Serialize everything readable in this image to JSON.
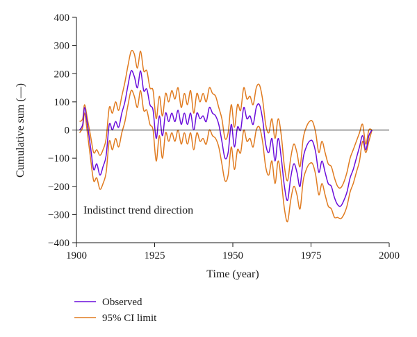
{
  "chart_data": {
    "type": "line",
    "title": "",
    "xlabel": "Time (year)",
    "ylabel": "Cumulative sum (—)",
    "xlim": [
      1900,
      2000
    ],
    "ylim": [
      -400,
      400
    ],
    "x_ticks": [
      "1900",
      "1925",
      "1950",
      "1975",
      "2000"
    ],
    "y_ticks": [
      "400",
      "300",
      "200",
      "100",
      "0",
      "−100",
      "−200",
      "−300",
      "−400"
    ],
    "grid": false,
    "zero_line": true,
    "legend_position": "bottom-left",
    "annotation": "Indistinct trend direction",
    "colors": {
      "observed": "#6a0ddb",
      "ci": "#e07b20",
      "annotation": "#2f7fae"
    },
    "series": [
      {
        "name": "Observed",
        "key": "observed",
        "points": [
          [
            1901,
            0
          ],
          [
            1902,
            20
          ],
          [
            1902.6,
            80
          ],
          [
            1903.5,
            20
          ],
          [
            1904.5,
            -60
          ],
          [
            1905.5,
            -140
          ],
          [
            1906.5,
            -120
          ],
          [
            1907.5,
            -160
          ],
          [
            1908.5,
            -130
          ],
          [
            1909.5,
            -90
          ],
          [
            1910.5,
            20
          ],
          [
            1911.5,
            0
          ],
          [
            1912.5,
            30
          ],
          [
            1913.5,
            10
          ],
          [
            1914.5,
            60
          ],
          [
            1915.5,
            100
          ],
          [
            1916.5,
            160
          ],
          [
            1917.5,
            210
          ],
          [
            1918.5,
            190
          ],
          [
            1919.5,
            150
          ],
          [
            1920.5,
            210
          ],
          [
            1921.5,
            140
          ],
          [
            1922.5,
            145
          ],
          [
            1923.5,
            90
          ],
          [
            1924.5,
            70
          ],
          [
            1925.5,
            -30
          ],
          [
            1926.5,
            50
          ],
          [
            1927.5,
            -20
          ],
          [
            1928.5,
            60
          ],
          [
            1929.5,
            30
          ],
          [
            1930.5,
            60
          ],
          [
            1931.5,
            30
          ],
          [
            1932.5,
            70
          ],
          [
            1933.5,
            20
          ],
          [
            1934.5,
            60
          ],
          [
            1935.5,
            20
          ],
          [
            1936.5,
            60
          ],
          [
            1937.5,
            0
          ],
          [
            1938.5,
            60
          ],
          [
            1939.5,
            40
          ],
          [
            1940.5,
            50
          ],
          [
            1941.5,
            30
          ],
          [
            1942.5,
            80
          ],
          [
            1943.5,
            60
          ],
          [
            1944.5,
            50
          ],
          [
            1945.5,
            20
          ],
          [
            1946.5,
            -40
          ],
          [
            1947.5,
            -100
          ],
          [
            1948.5,
            -80
          ],
          [
            1949.5,
            20
          ],
          [
            1950.5,
            -60
          ],
          [
            1951.5,
            10
          ],
          [
            1952.5,
            0
          ],
          [
            1953.5,
            80
          ],
          [
            1954.5,
            40
          ],
          [
            1955.5,
            50
          ],
          [
            1956.5,
            20
          ],
          [
            1957.5,
            80
          ],
          [
            1958.5,
            90
          ],
          [
            1959.5,
            40
          ],
          [
            1960.5,
            -50
          ],
          [
            1961.5,
            -80
          ],
          [
            1962.5,
            -30
          ],
          [
            1963.5,
            -110
          ],
          [
            1964.5,
            -30
          ],
          [
            1965.5,
            -100
          ],
          [
            1966.5,
            -200
          ],
          [
            1967.5,
            -250
          ],
          [
            1968.5,
            -170
          ],
          [
            1969.5,
            -120
          ],
          [
            1970.5,
            -150
          ],
          [
            1971.5,
            -200
          ],
          [
            1972.5,
            -100
          ],
          [
            1973.5,
            -60
          ],
          [
            1974.5,
            -40
          ],
          [
            1975.5,
            -40
          ],
          [
            1976.5,
            -80
          ],
          [
            1977.5,
            -150
          ],
          [
            1978.5,
            -110
          ],
          [
            1979.5,
            -150
          ],
          [
            1980.5,
            -190
          ],
          [
            1981.5,
            -200
          ],
          [
            1982.5,
            -240
          ],
          [
            1983.5,
            -265
          ],
          [
            1984.5,
            -270
          ],
          [
            1985.5,
            -250
          ],
          [
            1986.5,
            -220
          ],
          [
            1987.5,
            -170
          ],
          [
            1988.5,
            -140
          ],
          [
            1989.5,
            -100
          ],
          [
            1990.5,
            -60
          ],
          [
            1991.5,
            -20
          ],
          [
            1992.5,
            -70
          ],
          [
            1993.5,
            -20
          ],
          [
            1994.5,
            0
          ]
        ]
      },
      {
        "name": "95% CI limit",
        "key": "ci_upper",
        "points": [
          [
            1901,
            30
          ],
          [
            1902,
            40
          ],
          [
            1902.6,
            90
          ],
          [
            1903.5,
            40
          ],
          [
            1904.5,
            -20
          ],
          [
            1905.5,
            -80
          ],
          [
            1906.5,
            -70
          ],
          [
            1907.5,
            -90
          ],
          [
            1908.5,
            -70
          ],
          [
            1909.5,
            -30
          ],
          [
            1910.5,
            80
          ],
          [
            1911.5,
            60
          ],
          [
            1912.5,
            100
          ],
          [
            1913.5,
            70
          ],
          [
            1914.5,
            120
          ],
          [
            1915.5,
            170
          ],
          [
            1916.5,
            230
          ],
          [
            1917.5,
            280
          ],
          [
            1918.5,
            270
          ],
          [
            1919.5,
            220
          ],
          [
            1920.5,
            280
          ],
          [
            1921.5,
            210
          ],
          [
            1922.5,
            210
          ],
          [
            1923.5,
            150
          ],
          [
            1924.5,
            140
          ],
          [
            1925.5,
            40
          ],
          [
            1926.5,
            120
          ],
          [
            1927.5,
            50
          ],
          [
            1928.5,
            130
          ],
          [
            1929.5,
            100
          ],
          [
            1930.5,
            140
          ],
          [
            1931.5,
            110
          ],
          [
            1932.5,
            150
          ],
          [
            1933.5,
            80
          ],
          [
            1934.5,
            130
          ],
          [
            1935.5,
            90
          ],
          [
            1936.5,
            140
          ],
          [
            1937.5,
            60
          ],
          [
            1938.5,
            130
          ],
          [
            1939.5,
            100
          ],
          [
            1940.5,
            130
          ],
          [
            1941.5,
            100
          ],
          [
            1942.5,
            150
          ],
          [
            1943.5,
            130
          ],
          [
            1944.5,
            120
          ],
          [
            1945.5,
            80
          ],
          [
            1946.5,
            40
          ],
          [
            1947.5,
            -30
          ],
          [
            1948.5,
            -10
          ],
          [
            1949.5,
            90
          ],
          [
            1950.5,
            10
          ],
          [
            1951.5,
            90
          ],
          [
            1952.5,
            70
          ],
          [
            1953.5,
            150
          ],
          [
            1954.5,
            110
          ],
          [
            1955.5,
            120
          ],
          [
            1956.5,
            90
          ],
          [
            1957.5,
            150
          ],
          [
            1958.5,
            160
          ],
          [
            1959.5,
            110
          ],
          [
            1960.5,
            20
          ],
          [
            1961.5,
            -10
          ],
          [
            1962.5,
            40
          ],
          [
            1963.5,
            -30
          ],
          [
            1964.5,
            40
          ],
          [
            1965.5,
            -20
          ],
          [
            1966.5,
            -130
          ],
          [
            1967.5,
            -180
          ],
          [
            1968.5,
            -100
          ],
          [
            1969.5,
            -50
          ],
          [
            1970.5,
            -80
          ],
          [
            1971.5,
            -130
          ],
          [
            1972.5,
            -30
          ],
          [
            1973.5,
            10
          ],
          [
            1974.5,
            30
          ],
          [
            1975.5,
            30
          ],
          [
            1976.5,
            -10
          ],
          [
            1977.5,
            -80
          ],
          [
            1978.5,
            -40
          ],
          [
            1979.5,
            -80
          ],
          [
            1980.5,
            -120
          ],
          [
            1981.5,
            -130
          ],
          [
            1982.5,
            -170
          ],
          [
            1983.5,
            -200
          ],
          [
            1984.5,
            -205
          ],
          [
            1985.5,
            -185
          ],
          [
            1986.5,
            -150
          ],
          [
            1987.5,
            -100
          ],
          [
            1988.5,
            -70
          ],
          [
            1989.5,
            -40
          ],
          [
            1990.5,
            -10
          ],
          [
            1991.5,
            20
          ],
          [
            1992.5,
            -50
          ],
          [
            1993.5,
            0
          ],
          [
            1994.5,
            0
          ]
        ]
      },
      {
        "name": "95% CI limit",
        "key": "ci_lower",
        "points": [
          [
            1901,
            -10
          ],
          [
            1902,
            10
          ],
          [
            1902.6,
            60
          ],
          [
            1903.5,
            -10
          ],
          [
            1904.5,
            -100
          ],
          [
            1905.5,
            -180
          ],
          [
            1906.5,
            -170
          ],
          [
            1907.5,
            -210
          ],
          [
            1908.5,
            -190
          ],
          [
            1909.5,
            -150
          ],
          [
            1910.5,
            -40
          ],
          [
            1911.5,
            -70
          ],
          [
            1912.5,
            -30
          ],
          [
            1913.5,
            -60
          ],
          [
            1914.5,
            -10
          ],
          [
            1915.5,
            30
          ],
          [
            1916.5,
            90
          ],
          [
            1917.5,
            140
          ],
          [
            1918.5,
            120
          ],
          [
            1919.5,
            80
          ],
          [
            1920.5,
            140
          ],
          [
            1921.5,
            70
          ],
          [
            1922.5,
            70
          ],
          [
            1923.5,
            20
          ],
          [
            1924.5,
            0
          ],
          [
            1925.5,
            -110
          ],
          [
            1926.5,
            -20
          ],
          [
            1927.5,
            -100
          ],
          [
            1928.5,
            -10
          ],
          [
            1929.5,
            -40
          ],
          [
            1930.5,
            -10
          ],
          [
            1931.5,
            -40
          ],
          [
            1932.5,
            0
          ],
          [
            1933.5,
            -50
          ],
          [
            1934.5,
            -10
          ],
          [
            1935.5,
            -50
          ],
          [
            1936.5,
            -10
          ],
          [
            1937.5,
            -70
          ],
          [
            1938.5,
            -10
          ],
          [
            1939.5,
            -40
          ],
          [
            1940.5,
            -30
          ],
          [
            1941.5,
            -50
          ],
          [
            1942.5,
            0
          ],
          [
            1943.5,
            -20
          ],
          [
            1944.5,
            -30
          ],
          [
            1945.5,
            -60
          ],
          [
            1946.5,
            -120
          ],
          [
            1947.5,
            -180
          ],
          [
            1948.5,
            -160
          ],
          [
            1949.5,
            -60
          ],
          [
            1950.5,
            -140
          ],
          [
            1951.5,
            -70
          ],
          [
            1952.5,
            -80
          ],
          [
            1953.5,
            0
          ],
          [
            1954.5,
            -40
          ],
          [
            1955.5,
            -30
          ],
          [
            1956.5,
            -60
          ],
          [
            1957.5,
            0
          ],
          [
            1958.5,
            10
          ],
          [
            1959.5,
            -40
          ],
          [
            1960.5,
            -130
          ],
          [
            1961.5,
            -160
          ],
          [
            1962.5,
            -110
          ],
          [
            1963.5,
            -190
          ],
          [
            1964.5,
            -110
          ],
          [
            1965.5,
            -180
          ],
          [
            1966.5,
            -280
          ],
          [
            1967.5,
            -325
          ],
          [
            1968.5,
            -250
          ],
          [
            1969.5,
            -200
          ],
          [
            1970.5,
            -230
          ],
          [
            1971.5,
            -280
          ],
          [
            1972.5,
            -180
          ],
          [
            1973.5,
            -140
          ],
          [
            1974.5,
            -120
          ],
          [
            1975.5,
            -120
          ],
          [
            1976.5,
            -160
          ],
          [
            1977.5,
            -230
          ],
          [
            1978.5,
            -190
          ],
          [
            1979.5,
            -230
          ],
          [
            1980.5,
            -270
          ],
          [
            1981.5,
            -280
          ],
          [
            1982.5,
            -310
          ],
          [
            1983.5,
            -310
          ],
          [
            1984.5,
            -315
          ],
          [
            1985.5,
            -300
          ],
          [
            1986.5,
            -270
          ],
          [
            1987.5,
            -220
          ],
          [
            1988.5,
            -190
          ],
          [
            1989.5,
            -150
          ],
          [
            1990.5,
            -110
          ],
          [
            1991.5,
            -40
          ],
          [
            1992.5,
            -80
          ],
          [
            1993.5,
            -40
          ],
          [
            1994.5,
            0
          ]
        ]
      }
    ],
    "legend": [
      {
        "label": "Observed",
        "key": "observed"
      },
      {
        "label": "95% CI limit",
        "key": "ci"
      }
    ]
  }
}
